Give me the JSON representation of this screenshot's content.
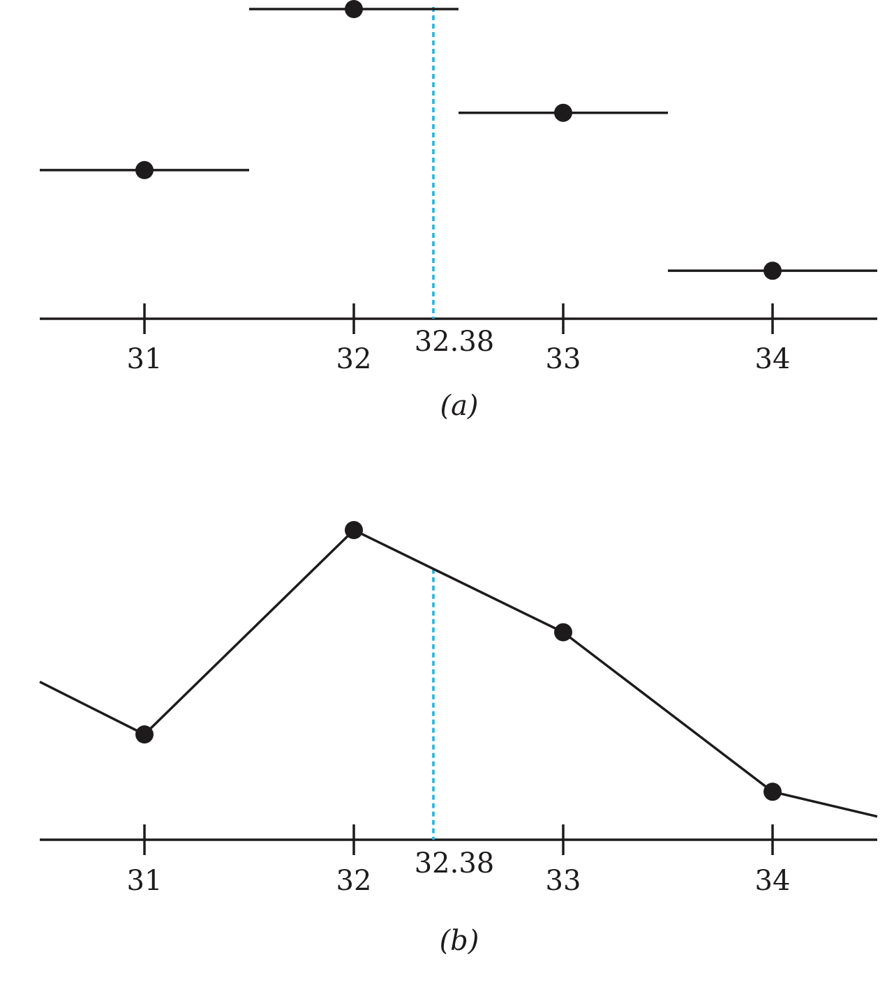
{
  "colors": {
    "ink": "#1e1b1c",
    "marker": "#1fb2de"
  },
  "chart_data": [
    {
      "type": "step",
      "panel_label": "(a)",
      "x_ticks": [
        31,
        32,
        33,
        34
      ],
      "tick_labels": [
        "31",
        "32",
        "33",
        "34"
      ],
      "xlim": [
        30.5,
        34.5
      ],
      "ylim": [
        0,
        1
      ],
      "points": [
        {
          "x": 31,
          "y": 0.48
        },
        {
          "x": 32,
          "y": 1.0
        },
        {
          "x": 33,
          "y": 0.665
        },
        {
          "x": 34,
          "y": 0.155
        }
      ],
      "marker": {
        "x": 32.38,
        "label": "32.38"
      },
      "grid": false
    },
    {
      "type": "line",
      "panel_label": "(b)",
      "x_ticks": [
        31,
        32,
        33,
        34
      ],
      "tick_labels": [
        "31",
        "32",
        "33",
        "34"
      ],
      "xlim": [
        30.5,
        34.5
      ],
      "ylim": [
        0,
        1
      ],
      "points": [
        {
          "x": 30.5,
          "y": 0.51
        },
        {
          "x": 31,
          "y": 0.34
        },
        {
          "x": 32,
          "y": 1.0
        },
        {
          "x": 33,
          "y": 0.67
        },
        {
          "x": 34,
          "y": 0.155
        },
        {
          "x": 34.5,
          "y": 0.075
        }
      ],
      "marker": {
        "x": 32.38,
        "label": "32.38"
      },
      "grid": false
    }
  ]
}
